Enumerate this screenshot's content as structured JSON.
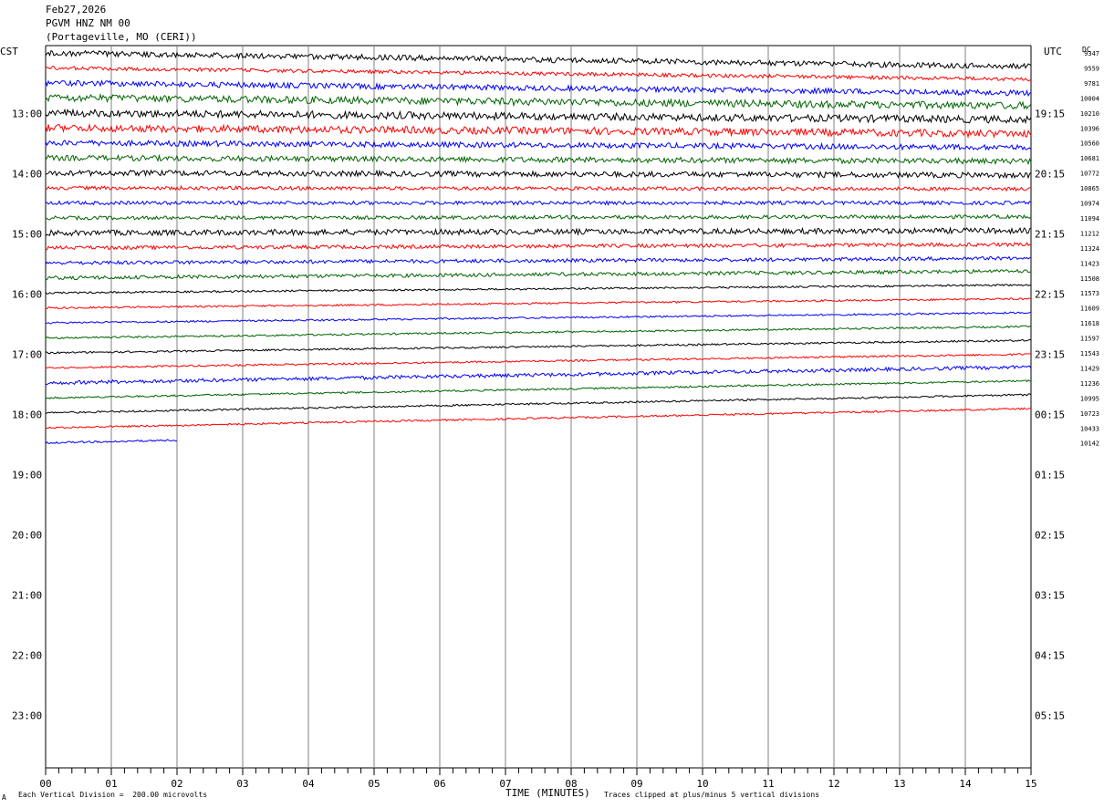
{
  "header": {
    "date": "Feb27,2026",
    "station": "PGVM HNZ NM 00",
    "location": "(Portageville, MO (CERI))"
  },
  "left_zone_label": "CST",
  "right_zone_label": "UTC",
  "dc_label": "DC",
  "xlabel": "TIME (MINUTES)",
  "footer_left": "Each Vertical Division =  200.00 microvolts",
  "footer_right": "Traces clipped at plus/minus 5 vertical divisions",
  "footer_mark": "A",
  "chart_data": {
    "type": "line",
    "title": "PGVM HNZ NM 00",
    "xlabel": "TIME (MINUTES)",
    "xlim": [
      0,
      15
    ],
    "x_ticks": [
      "00",
      "01",
      "02",
      "03",
      "04",
      "05",
      "06",
      "07",
      "08",
      "09",
      "10",
      "11",
      "12",
      "13",
      "14",
      "15"
    ],
    "hour_labels_left": [
      "13:00",
      "14:00",
      "15:00",
      "16:00",
      "17:00",
      "18:00",
      "19:00",
      "20:00",
      "21:00",
      "22:00",
      "23:00"
    ],
    "hour_labels_right": [
      "19:15",
      "20:15",
      "21:15",
      "22:15",
      "23:15",
      "00:15",
      "01:15",
      "02:15",
      "03:15",
      "04:15",
      "05:15"
    ],
    "trace_colors": [
      "#000000",
      "#ff0000",
      "#0000ff",
      "#006400"
    ],
    "dc_offsets": [
      "9347",
      "9559",
      "9781",
      "10004",
      "10210",
      "10396",
      "10560",
      "10681",
      "10772",
      "10865",
      "10974",
      "11094",
      "11212",
      "11324",
      "11423",
      "11508",
      "11573",
      "11609",
      "11618",
      "11597",
      "11543",
      "11429",
      "11236",
      "10995",
      "10723",
      "10433",
      "10142"
    ],
    "trace_count": 27,
    "last_trace_end_minute": 2.0,
    "noise_level": [
      3,
      2,
      3,
      4,
      4,
      4,
      3,
      3,
      3,
      2,
      2,
      2,
      3,
      2,
      2,
      2,
      1,
      1,
      1,
      1,
      1,
      1,
      2,
      1,
      1,
      1,
      1
    ],
    "drift": [
      -0.6,
      -0.5,
      -0.45,
      -0.35,
      -0.3,
      -0.25,
      -0.2,
      -0.15,
      -0.1,
      -0.05,
      0,
      0.05,
      0.1,
      0.15,
      0.2,
      0.3,
      0.35,
      0.4,
      0.45,
      0.5,
      0.55,
      0.6,
      0.7,
      0.75,
      0.8,
      0.85,
      0.9
    ]
  }
}
